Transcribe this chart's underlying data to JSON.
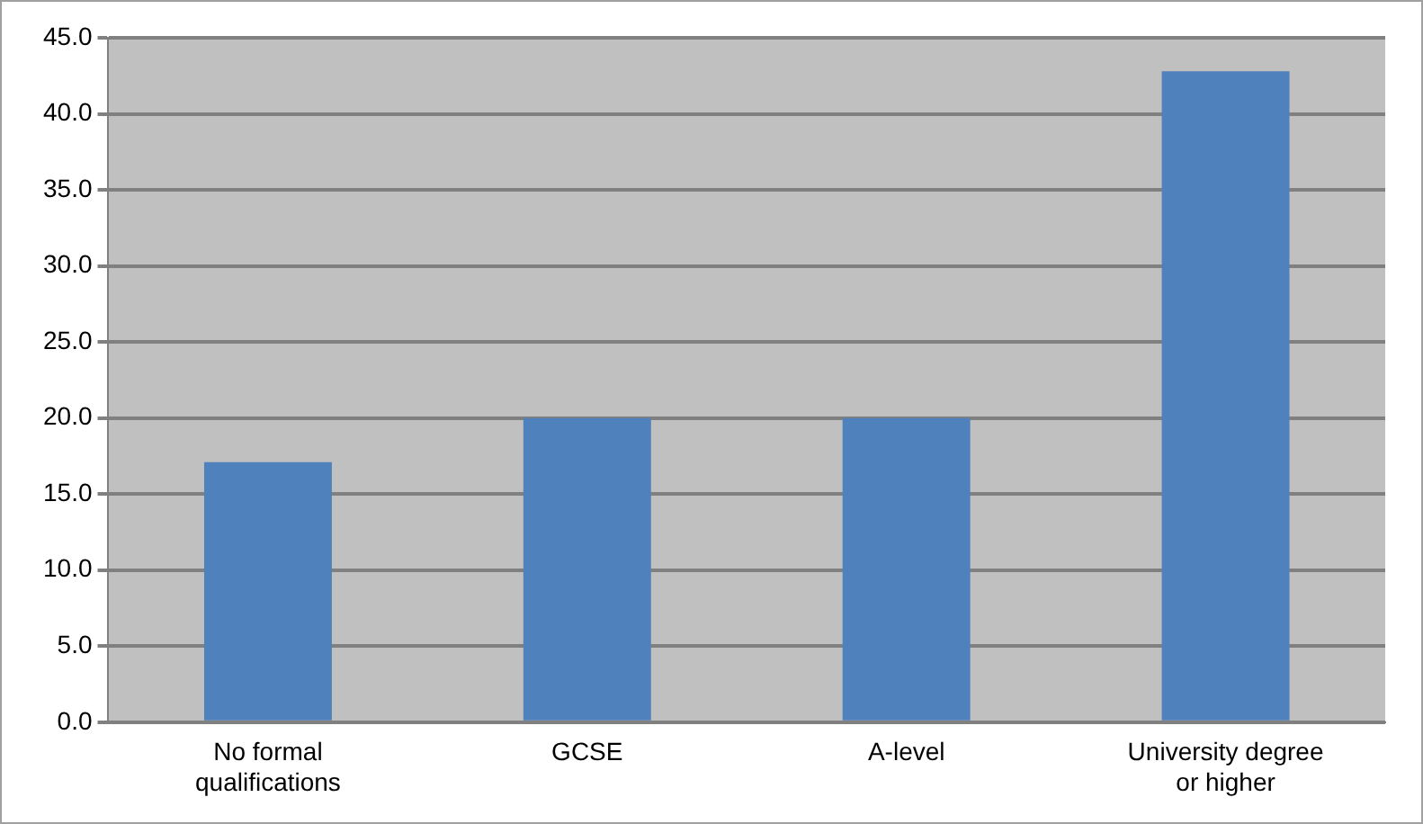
{
  "chart_data": {
    "type": "bar",
    "categories": [
      "No formal qualifications",
      "GCSE",
      "A-level",
      "University degree or higher"
    ],
    "values": [
      17.1,
      20.0,
      20.0,
      42.8
    ],
    "color": "#4f81bd",
    "ylim": [
      0,
      45
    ],
    "yticks": [
      {
        "value": 0,
        "label": "0.0"
      },
      {
        "value": 5,
        "label": "5.0"
      },
      {
        "value": 10,
        "label": "10.0"
      },
      {
        "value": 15,
        "label": "15.0"
      },
      {
        "value": 20,
        "label": "20.0"
      },
      {
        "value": 25,
        "label": "25.0"
      },
      {
        "value": 30,
        "label": "30.0"
      },
      {
        "value": 35,
        "label": "35.0"
      },
      {
        "value": 40,
        "label": "40.0"
      },
      {
        "value": 45,
        "label": "45.0"
      }
    ],
    "grid": "y",
    "legend": false
  }
}
